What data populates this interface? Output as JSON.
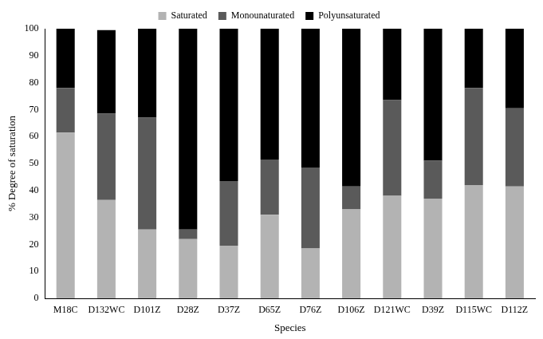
{
  "chart_data": {
    "type": "bar",
    "stacked": true,
    "legend": "top",
    "grid": false,
    "x_label": "Species",
    "y_label": "% Degree of saturation",
    "categories": [
      "M18C",
      "D132WC",
      "D101Z",
      "D28Z",
      "D37Z",
      "D65Z",
      "D76Z",
      "D106Z",
      "D121WC",
      "D39Z",
      "D115WC",
      "D112Z"
    ],
    "series": [
      {
        "name": "Saturated",
        "color": "#b3b3b3",
        "values": [
          61.5,
          36.5,
          25.5,
          22,
          19.5,
          31,
          18.5,
          33,
          38,
          37,
          42,
          41.5
        ]
      },
      {
        "name": "Monounaturated",
        "color": "#5a5a5a",
        "values": [
          16.5,
          32,
          41.5,
          3.5,
          24,
          20.5,
          30,
          8.5,
          35.5,
          14,
          36,
          29
        ]
      },
      {
        "name": "Polyunsaturated",
        "color": "#000000",
        "values": [
          22,
          31,
          33,
          74.5,
          56.5,
          48.5,
          51.5,
          58.5,
          26.5,
          49,
          22,
          29.5
        ]
      }
    ],
    "ylim": [
      0,
      100
    ],
    "yticks": [
      0,
      10,
      20,
      30,
      40,
      50,
      60,
      70,
      80,
      90,
      100
    ]
  }
}
